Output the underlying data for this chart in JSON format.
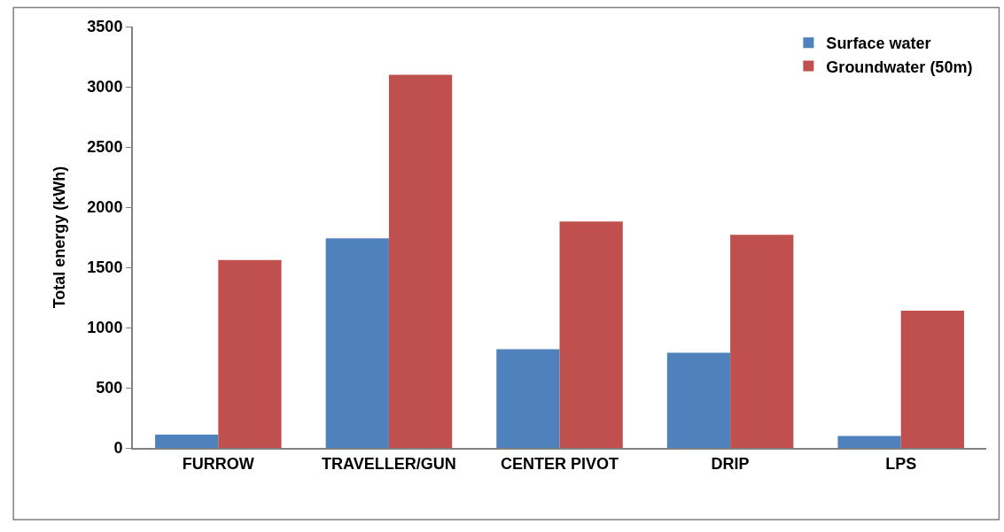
{
  "chart_data": {
    "type": "bar",
    "ylabel": "Total energy (kWh)",
    "categories": [
      "FURROW",
      "TRAVELLER/GUN",
      "CENTER PIVOT",
      "DRIP",
      "LPS"
    ],
    "series": [
      {
        "name": "Surface water",
        "color": "#4f81bd",
        "values": [
          110,
          1740,
          820,
          790,
          100
        ]
      },
      {
        "name": "Groundwater (50m)",
        "color": "#c0504d",
        "values": [
          1560,
          3100,
          1880,
          1770,
          1140
        ]
      }
    ],
    "ylim": [
      0,
      3500
    ],
    "yticks": [
      0,
      500,
      1000,
      1500,
      2000,
      2500,
      3000,
      3500
    ],
    "legend": "top right"
  }
}
